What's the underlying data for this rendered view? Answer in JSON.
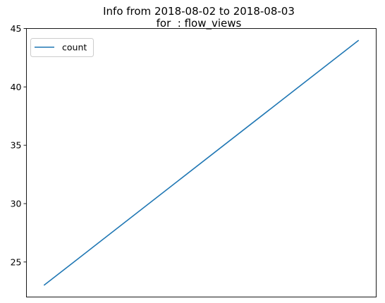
{
  "chart_data": {
    "type": "line",
    "title_line1": "Info from 2018-08-02 to 2018-08-03",
    "title_line2": "for  : flow_views",
    "xlabel": "",
    "ylabel": "",
    "x": [
      "2018-08-02",
      "2018-08-03"
    ],
    "series": [
      {
        "name": "count",
        "values": [
          23,
          44
        ],
        "color": "#1f77b4"
      }
    ],
    "ylim": [
      22.0,
      45.0
    ],
    "yticks": [
      25,
      30,
      35,
      40,
      45
    ],
    "x_ticks_visible": false,
    "grid": false,
    "legend_position": "upper-left"
  }
}
